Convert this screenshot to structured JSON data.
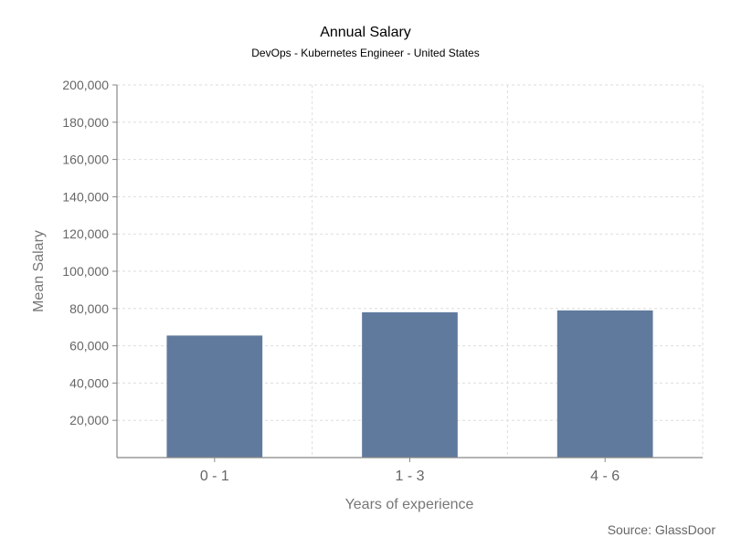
{
  "chart_data": {
    "type": "bar",
    "title": "Annual Salary",
    "subtitle": "DevOps - Kubernetes Engineer - United States",
    "xlabel": "Years of experience",
    "ylabel": "Mean Salary",
    "categories": [
      "0 - 1",
      "1 - 3",
      "4 - 6"
    ],
    "values": [
      65500,
      78000,
      79000
    ],
    "ylim": [
      0,
      200000
    ],
    "yticks": [
      20000,
      40000,
      60000,
      80000,
      100000,
      120000,
      140000,
      160000,
      180000,
      200000
    ],
    "ytick_labels": [
      "20,000",
      "40,000",
      "60,000",
      "80,000",
      "100,000",
      "120,000",
      "140,000",
      "160,000",
      "180,000",
      "200,000"
    ],
    "grid": true,
    "bar_color": "#607a9d",
    "source": "Source: GlassDoor"
  }
}
